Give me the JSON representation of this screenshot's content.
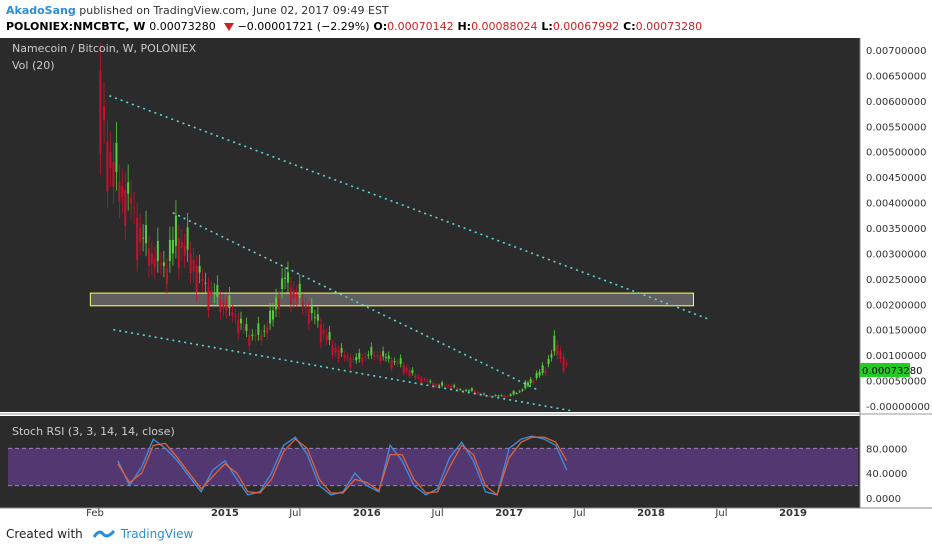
{
  "header": {
    "author": "AkadoSang",
    "published_text": "published on TradingView.com, June 02, 2017 09:49 EST",
    "symbol": "POLONIEX:NMCBTC, W",
    "last_price": "0.00073280",
    "change": "−0.00001721 (−2.29%)",
    "o_label": "O:",
    "o_value": "0.00070142",
    "h_label": "H:",
    "h_value": "0.00088024",
    "l_label": "L:",
    "l_value": "0.00067992",
    "c_label": "C:",
    "c_value": "0.00073280"
  },
  "chart": {
    "title": "Namecoin / Bitcoin, W, POLONIEX",
    "volume_label": "Vol (20)",
    "current_price_tag": "0.00073280",
    "stoch_label": "Stoch RSI (3, 3, 14, 14, close)",
    "colors": {
      "up": "#56cf3a",
      "down": "#c8102e",
      "bg": "#2b2b2b",
      "trend": "#5ad8d8",
      "zone_fill": "#8a8a8a",
      "zone_border": "#ffff66",
      "k_line": "#3d8fe0",
      "d_line": "#e0623a",
      "rsi_band": "#5b3a7e"
    }
  },
  "chart_data": [
    {
      "type": "line",
      "title": "Namecoin / Bitcoin, W, POLONIEX",
      "xlabel": "",
      "ylabel": "",
      "x_ticks": [
        "Feb",
        "2015",
        "Jul",
        "2016",
        "Jul",
        "2017",
        "Jul",
        "2018",
        "Jul",
        "2019"
      ],
      "x_tick_dates": [
        "2014-02-01",
        "2015-01-01",
        "2015-07-01",
        "2016-01-01",
        "2016-07-01",
        "2017-01-01",
        "2017-07-01",
        "2018-01-01",
        "2018-07-01",
        "2019-01-01"
      ],
      "y_ticks": [
        "0.00700000",
        "0.00650000",
        "0.00600000",
        "0.00550000",
        "0.00500000",
        "0.00450000",
        "0.00400000",
        "0.00350000",
        "0.00300000",
        "0.00250000",
        "0.00200000",
        "0.00150000",
        "0.00100000",
        "0.00050000",
        "-0.00000000"
      ],
      "ylim": [
        -5e-05,
        0.0072
      ],
      "series": [
        {
          "x": [
            "2014-02-10",
            "2014-03-01",
            "2014-04-01",
            "2014-05-01",
            "2014-06-01",
            "2014-07-01",
            "2014-08-01",
            "2014-09-01",
            "2014-10-01",
            "2014-11-01",
            "2014-12-01",
            "2015-01-01",
            "2015-02-01",
            "2015-03-01",
            "2015-04-01",
            "2015-05-01",
            "2015-06-01",
            "2015-07-01",
            "2015-08-01",
            "2015-09-01",
            "2015-10-01",
            "2015-11-01",
            "2015-12-01",
            "2016-01-01",
            "2016-02-01",
            "2016-03-01",
            "2016-04-01",
            "2016-05-01",
            "2016-06-01",
            "2016-07-01",
            "2016-08-01",
            "2016-09-01",
            "2016-10-01",
            "2016-11-01",
            "2016-12-01",
            "2017-01-01",
            "2017-02-01",
            "2017-03-01",
            "2017-04-01",
            "2017-05-01",
            "2017-06-02"
          ],
          "values": [
            0.0066,
            0.0052,
            0.0044,
            0.0041,
            0.0033,
            0.0029,
            0.0027,
            0.0033,
            0.003,
            0.0025,
            0.0022,
            0.002,
            0.0017,
            0.0014,
            0.0014,
            0.0017,
            0.0025,
            0.0022,
            0.0019,
            0.0016,
            0.0012,
            0.001,
            0.0009,
            0.001,
            0.001,
            0.0009,
            0.0008,
            0.0006,
            0.0005,
            0.0004,
            0.0004,
            0.0003,
            0.0003,
            0.0002,
            0.0002,
            0.0002,
            0.0003,
            0.0005,
            0.0007,
            0.0012,
            0.00073
          ]
        }
      ],
      "trendlines": [
        {
          "from": [
            "2014-03-10",
            0.0061
          ],
          "to": [
            "2018-06-01",
            0.0017
          ]
        },
        {
          "from": [
            "2014-08-20",
            0.0038
          ],
          "to": [
            "2017-03-20",
            0.0003
          ]
        },
        {
          "from": [
            "2014-03-20",
            0.0015
          ],
          "to": [
            "2017-06-15",
            -0.0001
          ]
        }
      ],
      "zone": {
        "x": [
          "2014-01-20",
          "2018-04-20"
        ],
        "y": [
          0.00197,
          0.00222
        ]
      }
    },
    {
      "type": "line",
      "title": "Stoch RSI (3, 3, 14, 14, close)",
      "y_ticks": [
        "80.0000",
        "40.0000",
        "0.0000"
      ],
      "ylim": [
        -10,
        105
      ],
      "bands": [
        20,
        80
      ],
      "series": [
        {
          "name": "K",
          "x": [
            "2014-04-01",
            "2014-05-01",
            "2014-06-01",
            "2014-07-01",
            "2014-08-01",
            "2014-09-01",
            "2014-10-01",
            "2014-11-01",
            "2014-12-01",
            "2015-01-01",
            "2015-02-01",
            "2015-03-01",
            "2015-04-01",
            "2015-05-01",
            "2015-06-01",
            "2015-07-01",
            "2015-08-01",
            "2015-09-01",
            "2015-10-01",
            "2015-11-01",
            "2015-12-01",
            "2016-01-01",
            "2016-02-01",
            "2016-03-01",
            "2016-04-01",
            "2016-05-01",
            "2016-06-01",
            "2016-07-01",
            "2016-08-01",
            "2016-09-01",
            "2016-10-01",
            "2016-11-01",
            "2016-12-01",
            "2017-01-01",
            "2017-02-01",
            "2017-03-01",
            "2017-04-01",
            "2017-05-01",
            "2017-05-29"
          ],
          "values": [
            60,
            20,
            50,
            95,
            80,
            60,
            35,
            10,
            45,
            60,
            30,
            5,
            10,
            40,
            85,
            98,
            70,
            20,
            5,
            10,
            40,
            20,
            10,
            85,
            60,
            20,
            5,
            15,
            65,
            90,
            60,
            10,
            5,
            80,
            95,
            100,
            95,
            85,
            45
          ]
        },
        {
          "name": "D",
          "x": [
            "2014-04-01",
            "2014-05-01",
            "2014-06-01",
            "2014-07-01",
            "2014-08-01",
            "2014-09-01",
            "2014-10-01",
            "2014-11-01",
            "2014-12-01",
            "2015-01-01",
            "2015-02-01",
            "2015-03-01",
            "2015-04-01",
            "2015-05-01",
            "2015-06-01",
            "2015-07-01",
            "2015-08-01",
            "2015-09-01",
            "2015-10-01",
            "2015-11-01",
            "2015-12-01",
            "2016-01-01",
            "2016-02-01",
            "2016-03-01",
            "2016-04-01",
            "2016-05-01",
            "2016-06-01",
            "2016-07-01",
            "2016-08-01",
            "2016-09-01",
            "2016-10-01",
            "2016-11-01",
            "2016-12-01",
            "2017-01-01",
            "2017-02-01",
            "2017-03-01",
            "2017-04-01",
            "2017-05-01",
            "2017-05-29"
          ],
          "values": [
            55,
            25,
            40,
            85,
            88,
            65,
            40,
            15,
            35,
            55,
            40,
            10,
            8,
            30,
            75,
            95,
            80,
            30,
            8,
            8,
            30,
            25,
            12,
            70,
            70,
            30,
            8,
            10,
            50,
            85,
            70,
            20,
            5,
            65,
            90,
            98,
            98,
            90,
            60
          ]
        }
      ]
    }
  ],
  "footer": {
    "created_with": "Created with",
    "brand": "TradingView"
  }
}
